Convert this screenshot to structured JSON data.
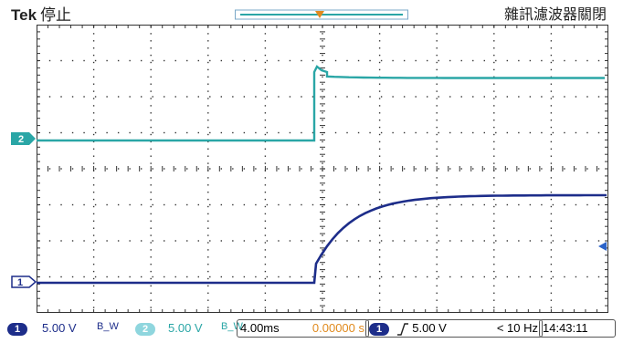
{
  "header": {
    "brand": "Tek",
    "run_state": "停止",
    "trigger_mode": "雜訊濾波器關閉"
  },
  "channels": [
    {
      "id": "1",
      "color": "#1d2d8a"
    },
    {
      "id": "2",
      "color": "#2aa6a6"
    }
  ],
  "statusbar": {
    "ch1_badge": "1",
    "ch1_scale": "5.00 V",
    "ch1_bw": "B_W",
    "ch2_badge": "2",
    "ch2_scale": "5.00 V",
    "ch2_bw": "B_W",
    "timebase": "4.00ms",
    "trigger_position": "0.00000 s",
    "trigger_source": "1",
    "trigger_level": "5.00 V",
    "trigger_slope": "rising",
    "frequency": "< 10 Hz",
    "clock": "14:43:11"
  },
  "colors": {
    "grid": "#333333",
    "ch1_trace": "#1d2d8a",
    "ch2_trace": "#2aa6a6",
    "trigger_marker": "#e08a1e",
    "ch1_label": "#1d2d8a",
    "ch2_label": "#2aa6a6"
  }
}
